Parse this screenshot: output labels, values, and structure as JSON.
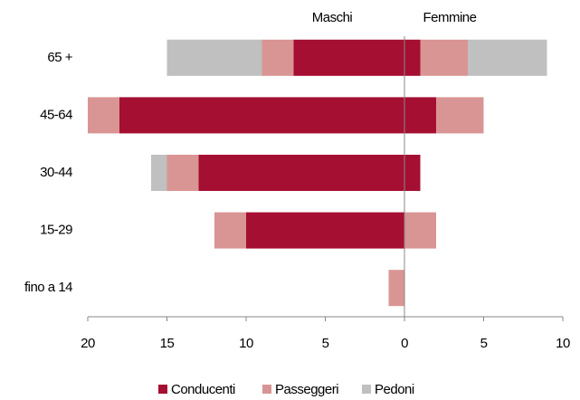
{
  "chart_data": {
    "type": "diverging_bar",
    "group_labels": [
      "Maschi",
      "Femmine"
    ],
    "categories": [
      "65 +",
      "45-64",
      "30-44",
      "15-29",
      "fino a 14"
    ],
    "series": [
      {
        "name": "Conducenti",
        "color": "#a50f32",
        "male": [
          -7,
          -18,
          -13,
          -10,
          0
        ],
        "female": [
          1,
          2,
          1,
          0,
          0
        ]
      },
      {
        "name": "Passeggeri",
        "color": "#d99594",
        "male": [
          -2,
          -2,
          -2,
          -2,
          -1
        ],
        "female": [
          3,
          3,
          0,
          2,
          0
        ]
      },
      {
        "name": "Pedoni",
        "color": "#c0c0c0",
        "male": [
          -6,
          0,
          -1,
          0,
          0
        ],
        "female": [
          5,
          0,
          0,
          0,
          0
        ]
      }
    ],
    "xlim": [
      -20,
      10
    ],
    "xticks": [
      {
        "value": -20,
        "label": "20"
      },
      {
        "value": -15,
        "label": "15"
      },
      {
        "value": -10,
        "label": "10"
      },
      {
        "value": -5,
        "label": "5"
      },
      0,
      5,
      10
    ]
  }
}
